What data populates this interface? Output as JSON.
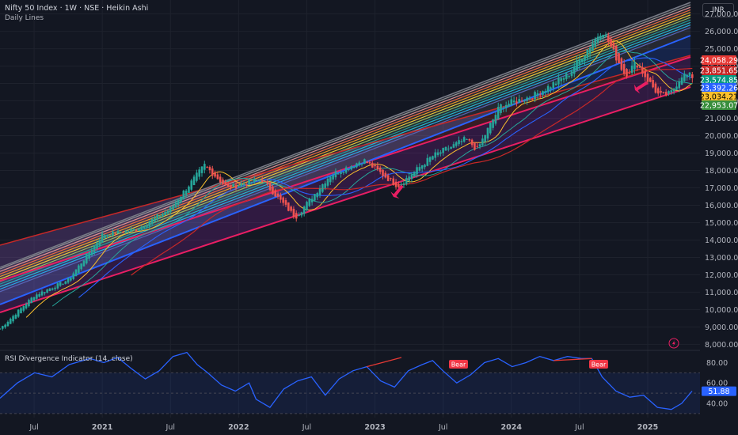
{
  "header": {
    "title": "Nifty 50 Index · 1W · NSE · Heikin Ashi",
    "subtitle": "Daily Lines",
    "currency": "INR"
  },
  "indicator": {
    "title": "RSI Divergence Indicator (14, close)",
    "signals": [
      "Bear",
      "Bear"
    ]
  },
  "colors": {
    "background": "#131722",
    "up_candle": "#26a69a",
    "down_candle": "#ef5350",
    "rsi_line": "#2962ff",
    "arrow": "#e91e63"
  },
  "chart_data": [
    {
      "type": "candlestick",
      "title": "Nifty 50 Index · 1W · NSE · Heikin Ashi",
      "x_tick_labels": [
        "Jul",
        "2021",
        "Jul",
        "2022",
        "Jul",
        "2023",
        "Jul",
        "2024",
        "Jul",
        "2025"
      ],
      "x_range": [
        "2020-04",
        "2025-05"
      ],
      "y_ticks": [
        8000,
        9000,
        10000,
        11000,
        12000,
        13000,
        14000,
        15000,
        16000,
        17000,
        18000,
        19000,
        20000,
        21000,
        22000,
        23000,
        24000,
        25000,
        26000,
        27000
      ],
      "y_tick_labels": [
        "8,000.00",
        "9,000.00",
        "10,000.00",
        "11,000.00",
        "12,000.00",
        "13,000.00",
        "14,000.00",
        "15,000.00",
        "16,000.00",
        "17,000.00",
        "18,000.00",
        "19,000.00",
        "20,000.00",
        "21,000.00",
        "22,000.00",
        "23,000.00",
        "24,000.00",
        "25,000.00",
        "26,000.00",
        "27,000.00"
      ],
      "ylim": [
        7700,
        27800
      ],
      "price_key_points": [
        [
          "2020-04",
          8900
        ],
        [
          "2020-07",
          10800
        ],
        [
          "2020-10",
          11700
        ],
        [
          "2021-01",
          14300
        ],
        [
          "2021-04",
          14600
        ],
        [
          "2021-07",
          15800
        ],
        [
          "2021-10",
          18300
        ],
        [
          "2021-12",
          17000
        ],
        [
          "2022-03",
          17500
        ],
        [
          "2022-06",
          15300
        ],
        [
          "2022-09",
          17700
        ],
        [
          "2022-12",
          18600
        ],
        [
          "2023-03",
          17100
        ],
        [
          "2023-06",
          18800
        ],
        [
          "2023-09",
          19800
        ],
        [
          "2023-10",
          19200
        ],
        [
          "2023-12",
          21700
        ],
        [
          "2024-03",
          22300
        ],
        [
          "2024-06",
          23500
        ],
        [
          "2024-09",
          26100
        ],
        [
          "2024-11",
          23500
        ],
        [
          "2024-12",
          24200
        ],
        [
          "2025-01",
          23200
        ],
        [
          "2025-02",
          22300
        ],
        [
          "2025-03",
          22400
        ],
        [
          "2025-04",
          23500
        ],
        [
          "2025-05",
          23400
        ]
      ],
      "price_labels": [
        {
          "value": "24,058.29",
          "color": "#e53935"
        },
        {
          "value": "23,851.65",
          "color": "#c62828"
        },
        {
          "value": "23,574.85",
          "color": "#089981"
        },
        {
          "value": "23,392.26",
          "color": "#2962ff"
        },
        {
          "value": "23,034.21",
          "color": "#fbc02d"
        },
        {
          "value": "22,953.07",
          "color": "#388e3c"
        }
      ],
      "grid": true
    },
    {
      "type": "line",
      "title": "RSI Divergence Indicator (14, close)",
      "y_ticks": [
        40,
        60,
        80
      ],
      "y_tick_labels": [
        "40.00",
        "60.00",
        "80.00"
      ],
      "current_value": "51.88",
      "ylim": [
        26,
        92
      ],
      "band": [
        30,
        70
      ],
      "series": [
        {
          "x_range": [
            "2020-04",
            "2025-05"
          ],
          "key_points": [
            [
              0.0,
              45
            ],
            [
              0.025,
              60
            ],
            [
              0.05,
              70
            ],
            [
              0.075,
              66
            ],
            [
              0.1,
              78
            ],
            [
              0.13,
              84
            ],
            [
              0.15,
              80
            ],
            [
              0.17,
              85
            ],
            [
              0.19,
              74
            ],
            [
              0.21,
              64
            ],
            [
              0.23,
              72
            ],
            [
              0.25,
              86
            ],
            [
              0.27,
              90
            ],
            [
              0.285,
              78
            ],
            [
              0.3,
              70
            ],
            [
              0.32,
              58
            ],
            [
              0.34,
              52
            ],
            [
              0.36,
              60
            ],
            [
              0.37,
              44
            ],
            [
              0.39,
              36
            ],
            [
              0.41,
              54
            ],
            [
              0.43,
              62
            ],
            [
              0.45,
              66
            ],
            [
              0.47,
              48
            ],
            [
              0.49,
              64
            ],
            [
              0.51,
              72
            ],
            [
              0.53,
              76
            ],
            [
              0.55,
              62
            ],
            [
              0.57,
              56
            ],
            [
              0.59,
              72
            ],
            [
              0.61,
              78
            ],
            [
              0.625,
              82
            ],
            [
              0.64,
              72
            ],
            [
              0.66,
              60
            ],
            [
              0.68,
              68
            ],
            [
              0.7,
              80
            ],
            [
              0.72,
              84
            ],
            [
              0.74,
              76
            ],
            [
              0.76,
              80
            ],
            [
              0.78,
              86
            ],
            [
              0.8,
              82
            ],
            [
              0.82,
              86
            ],
            [
              0.84,
              84
            ],
            [
              0.855,
              84
            ],
            [
              0.87,
              66
            ],
            [
              0.89,
              52
            ],
            [
              0.91,
              46
            ],
            [
              0.93,
              48
            ],
            [
              0.95,
              36
            ],
            [
              0.97,
              34
            ],
            [
              0.985,
              40
            ],
            [
              1.0,
              52
            ]
          ]
        }
      ]
    }
  ]
}
